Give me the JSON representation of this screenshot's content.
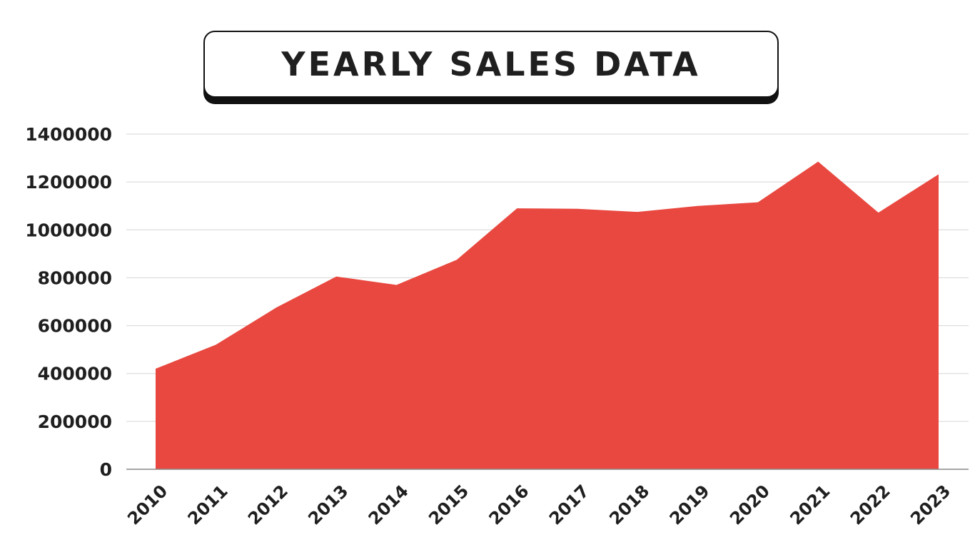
{
  "title": "YEARLY SALES DATA",
  "chart_data": {
    "type": "area",
    "title": "YEARLY SALES DATA",
    "xlabel": "",
    "ylabel": "",
    "categories": [
      "2010",
      "2011",
      "2012",
      "2013",
      "2014",
      "2015",
      "2016",
      "2017",
      "2018",
      "2019",
      "2020",
      "2021",
      "2022",
      "2023"
    ],
    "values": [
      420000,
      520000,
      675000,
      805000,
      770000,
      875000,
      1090000,
      1088000,
      1075000,
      1100000,
      1115000,
      1285000,
      1072000,
      1232000
    ],
    "ylim": [
      0,
      1400000
    ],
    "yticks": [
      "0",
      "200000",
      "400000",
      "600000",
      "800000",
      "1000000",
      "1200000",
      "1400000"
    ],
    "grid": true,
    "legend": "none",
    "fill_color": "#e8483f",
    "grid_color": "#d6d6d6",
    "text_color": "#1f1f1f"
  }
}
